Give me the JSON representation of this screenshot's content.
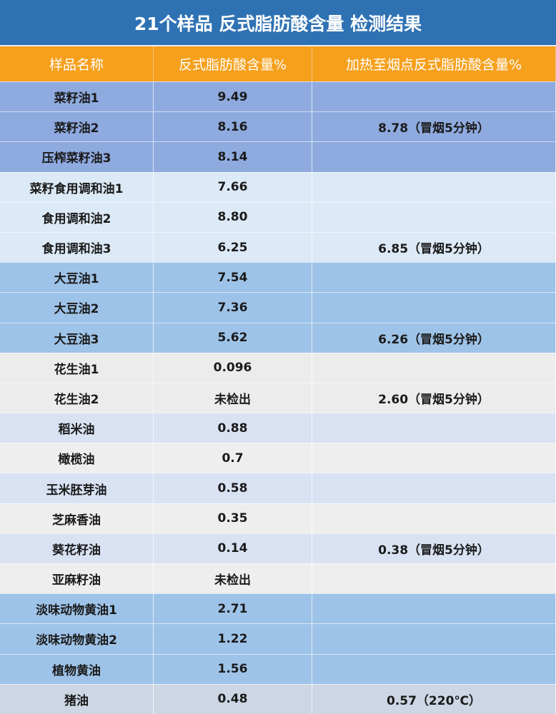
{
  "title": "21个样品 反式脂肪酸含量 检测结果",
  "headers": [
    "样品名称",
    "反式脂肪酸含量%",
    "加热至烟点反式脂肪酸含量%"
  ],
  "rows": [
    {
      "name": "菜籽油1",
      "value": "9.49",
      "heated": "",
      "group": "g1"
    },
    {
      "name": "菜籽油2",
      "value": "8.16",
      "heated": "8.78（冒烟5分钟）",
      "group": "g1"
    },
    {
      "name": "压榨菜籽油3",
      "value": "8.14",
      "heated": "",
      "group": "g1"
    },
    {
      "name": "菜籽食用调和油1",
      "value": "7.66",
      "heated": "",
      "group": "g2"
    },
    {
      "name": "食用调和油2",
      "value": "8.80",
      "heated": "",
      "group": "g2"
    },
    {
      "name": "食用调和油3",
      "value": "6.25",
      "heated": "6.85（冒烟5分钟）",
      "group": "g2"
    },
    {
      "name": "大豆油1",
      "value": "7.54",
      "heated": "",
      "group": "g3"
    },
    {
      "name": "大豆油2",
      "value": "7.36",
      "heated": "",
      "group": "g3"
    },
    {
      "name": "大豆油3",
      "value": "5.62",
      "heated": "6.26（冒烟5分钟）",
      "group": "g3"
    },
    {
      "name": "花生油1",
      "value": "0.096",
      "heated": "",
      "group": "g4"
    },
    {
      "name": "花生油2",
      "value": "未检出",
      "heated": "2.60（冒烟5分钟）",
      "group": "g4"
    },
    {
      "name": "稻米油",
      "value": "0.88",
      "heated": "",
      "group": "ga"
    },
    {
      "name": "橄榄油",
      "value": "0.7",
      "heated": "",
      "group": "gb"
    },
    {
      "name": "玉米胚芽油",
      "value": "0.58",
      "heated": "",
      "group": "ga"
    },
    {
      "name": "芝麻香油",
      "value": "0.35",
      "heated": "",
      "group": "gb"
    },
    {
      "name": "葵花籽油",
      "value": "0.14",
      "heated": "0.38（冒烟5分钟）",
      "group": "ga"
    },
    {
      "name": "亚麻籽油",
      "value": "未检出",
      "heated": "",
      "group": "gb"
    },
    {
      "name": "淡味动物黄油1",
      "value": "2.71",
      "heated": "",
      "group": "g6"
    },
    {
      "name": "淡味动物黄油2",
      "value": "1.22",
      "heated": "",
      "group": "g6"
    },
    {
      "name": "植物黄油",
      "value": "1.56",
      "heated": "",
      "group": "g6"
    },
    {
      "name": "猪油",
      "value": "0.48",
      "heated": "0.57（220℃）",
      "group": "g7"
    }
  ]
}
